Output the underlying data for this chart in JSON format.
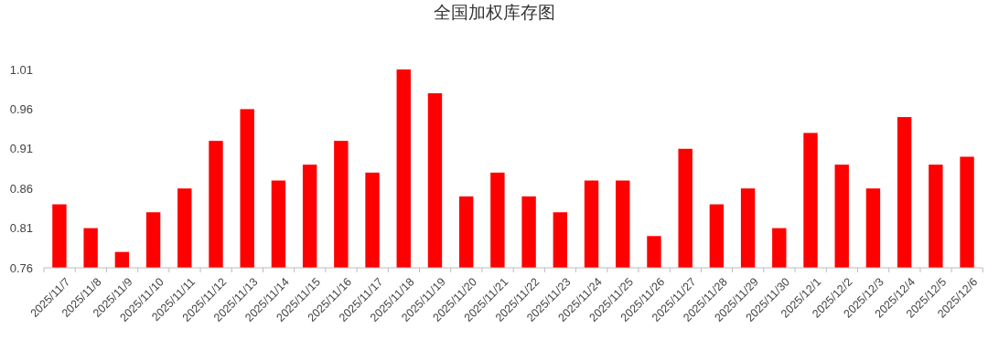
{
  "chart_data": {
    "type": "bar",
    "title": "全国加权库存图",
    "categories": [
      "2025/11/7",
      "2025/11/8",
      "2025/11/9",
      "2025/11/10",
      "2025/11/11",
      "2025/11/12",
      "2025/11/13",
      "2025/11/14",
      "2025/11/15",
      "2025/11/16",
      "2025/11/17",
      "2025/11/18",
      "2025/11/19",
      "2025/11/20",
      "2025/11/21",
      "2025/11/22",
      "2025/11/23",
      "2025/11/24",
      "2025/11/25",
      "2025/11/26",
      "2025/11/27",
      "2025/11/28",
      "2025/11/29",
      "2025/11/30",
      "2025/12/1",
      "2025/12/2",
      "2025/12/3",
      "2025/12/4",
      "2025/12/5",
      "2025/12/6"
    ],
    "values": [
      0.84,
      0.81,
      0.78,
      0.83,
      0.86,
      0.92,
      0.96,
      0.87,
      0.89,
      0.92,
      0.88,
      1.01,
      0.98,
      0.85,
      0.88,
      0.85,
      0.83,
      0.87,
      0.87,
      0.8,
      0.91,
      0.84,
      0.86,
      0.81,
      0.93,
      0.89,
      0.86,
      0.95,
      0.89,
      0.9
    ],
    "color": "#ff0000",
    "ylim": [
      0.76,
      1.01
    ],
    "yticks": [
      0.76,
      0.81,
      0.86,
      0.91,
      0.96,
      1.01
    ],
    "grid": false
  }
}
